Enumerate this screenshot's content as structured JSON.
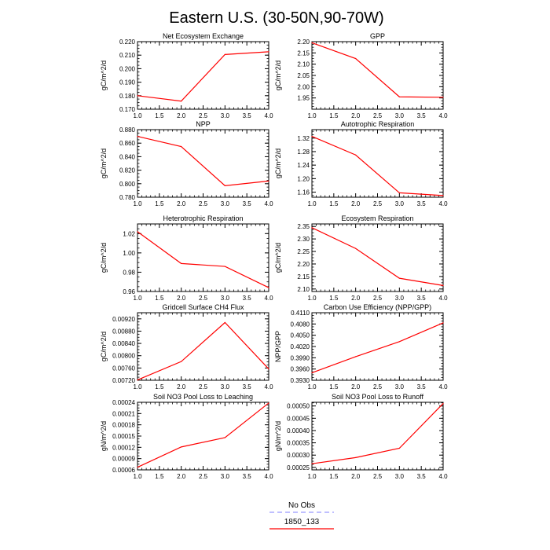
{
  "title": "Eastern U.S. (30-50N,90-70W)",
  "colors": {
    "series": "#ff0000",
    "obs": "#9999ff",
    "axis": "#000000"
  },
  "legend": {
    "items": [
      "No Obs",
      "1850_133"
    ]
  },
  "chart_data": [
    {
      "type": "line",
      "title": "Net Ecosystem Exchange",
      "ylabel": "gC/m^2/d",
      "xlim": [
        1.0,
        4.0
      ],
      "ylim": [
        0.17,
        0.22
      ],
      "x": [
        1,
        2,
        3,
        4
      ],
      "x_ticks": [
        "1.0",
        "1.5",
        "2.0",
        "2.5",
        "3.0",
        "3.5",
        "4.0"
      ],
      "y_ticks": [
        "0.170",
        "0.180",
        "0.190",
        "0.200",
        "0.210",
        "0.220"
      ],
      "series": [
        {
          "name": "1850_133",
          "values": [
            0.18,
            0.176,
            0.2105,
            0.2125
          ]
        }
      ]
    },
    {
      "type": "line",
      "title": "GPP",
      "ylabel": "gC/m^2/d",
      "xlim": [
        1.0,
        4.0
      ],
      "ylim": [
        1.9,
        2.2
      ],
      "x": [
        1,
        2,
        3,
        4
      ],
      "x_ticks": [
        "1.0",
        "1.5",
        "2.0",
        "2.5",
        "3.0",
        "3.5",
        "4.0"
      ],
      "y_ticks": [
        "1.95",
        "2.00",
        "2.05",
        "2.10",
        "2.15",
        "2.20"
      ],
      "series": [
        {
          "name": "1850_133",
          "values": [
            2.195,
            2.125,
            1.955,
            1.953
          ]
        }
      ]
    },
    {
      "type": "line",
      "title": "NPP",
      "ylabel": "gC/m^2/d",
      "xlim": [
        1.0,
        4.0
      ],
      "ylim": [
        0.78,
        0.88
      ],
      "x": [
        1,
        2,
        3,
        4
      ],
      "x_ticks": [
        "1.0",
        "1.5",
        "2.0",
        "2.5",
        "3.0",
        "3.5",
        "4.0"
      ],
      "y_ticks": [
        "0.780",
        "0.800",
        "0.820",
        "0.840",
        "0.860",
        "0.880"
      ],
      "series": [
        {
          "name": "1850_133",
          "values": [
            0.87,
            0.855,
            0.797,
            0.804
          ]
        }
      ]
    },
    {
      "type": "line",
      "title": "Autotrophic Respiration",
      "ylabel": "gC/m^2/d",
      "xlim": [
        1.0,
        4.0
      ],
      "ylim": [
        1.145,
        1.345
      ],
      "x": [
        1,
        2,
        3,
        4
      ],
      "x_ticks": [
        "1.0",
        "1.5",
        "2.0",
        "2.5",
        "3.0",
        "3.5",
        "4.0"
      ],
      "y_ticks": [
        "1.16",
        "1.20",
        "1.24",
        "1.28",
        "1.32"
      ],
      "series": [
        {
          "name": "1850_133",
          "values": [
            1.325,
            1.27,
            1.158,
            1.15
          ]
        }
      ]
    },
    {
      "type": "line",
      "title": "Heterotrophic Respiration",
      "ylabel": "gC/m^2/d",
      "xlim": [
        1.0,
        4.0
      ],
      "ylim": [
        0.96,
        1.03
      ],
      "x": [
        1,
        2,
        3,
        4
      ],
      "x_ticks": [
        "1.0",
        "1.5",
        "2.0",
        "2.5",
        "3.0",
        "3.5",
        "4.0"
      ],
      "y_ticks": [
        "0.96",
        "0.98",
        "1.00",
        "1.02"
      ],
      "series": [
        {
          "name": "1850_133",
          "values": [
            1.022,
            0.989,
            0.986,
            0.964
          ]
        }
      ]
    },
    {
      "type": "line",
      "title": "Ecosystem Respiration",
      "ylabel": "gC/m^2/d",
      "xlim": [
        1.0,
        4.0
      ],
      "ylim": [
        2.09,
        2.36
      ],
      "x": [
        1,
        2,
        3,
        4
      ],
      "x_ticks": [
        "1.0",
        "1.5",
        "2.0",
        "2.5",
        "3.0",
        "3.5",
        "4.0"
      ],
      "y_ticks": [
        "2.10",
        "2.15",
        "2.20",
        "2.25",
        "2.30",
        "2.35"
      ],
      "series": [
        {
          "name": "1850_133",
          "values": [
            2.345,
            2.262,
            2.143,
            2.114
          ]
        }
      ]
    },
    {
      "type": "line",
      "title": "Gridcell Surface CH4 Flux",
      "ylabel": "gC/m^2/d",
      "xlim": [
        1.0,
        4.0
      ],
      "ylim": [
        0.0072,
        0.0094
      ],
      "x": [
        1,
        2,
        3,
        4
      ],
      "x_ticks": [
        "1.0",
        "1.5",
        "2.0",
        "2.5",
        "3.0",
        "3.5",
        "4.0"
      ],
      "y_ticks": [
        "0.00720",
        "0.00760",
        "0.00800",
        "0.00840",
        "0.00880",
        "0.00920"
      ],
      "series": [
        {
          "name": "1850_133",
          "values": [
            0.00721,
            0.00781,
            0.00908,
            0.00757
          ]
        }
      ]
    },
    {
      "type": "line",
      "title": "Carbon Use Efficiency (NPP/GPP)",
      "ylabel": "NPP/GPP",
      "xlim": [
        1.0,
        4.0
      ],
      "ylim": [
        0.393,
        0.411
      ],
      "x": [
        1,
        2,
        3,
        4
      ],
      "x_ticks": [
        "1.0",
        "1.5",
        "2.0",
        "2.5",
        "3.0",
        "3.5",
        "4.0"
      ],
      "y_ticks": [
        "0.3930",
        "0.3960",
        "0.3990",
        "0.4020",
        "0.4050",
        "0.4080",
        "0.4110"
      ],
      "series": [
        {
          "name": "1850_133",
          "values": [
            0.395,
            0.3993,
            0.4033,
            0.4083
          ]
        }
      ]
    },
    {
      "type": "line",
      "title": "Soil NO3 Pool Loss to Leaching",
      "ylabel": "gN/m^2/d",
      "xlim": [
        1.0,
        4.0
      ],
      "ylim": [
        6e-05,
        0.00024
      ],
      "x": [
        1,
        2,
        3,
        4
      ],
      "x_ticks": [
        "1.0",
        "1.5",
        "2.0",
        "2.5",
        "3.0",
        "3.5",
        "4.0"
      ],
      "y_ticks": [
        "0.00006",
        "0.00009",
        "0.00012",
        "0.00015",
        "0.00018",
        "0.00021",
        "0.00024"
      ],
      "series": [
        {
          "name": "1850_133",
          "values": [
            6.7e-05,
            0.000121,
            0.000146,
            0.000238
          ]
        }
      ]
    },
    {
      "type": "line",
      "title": "Soil NO3 Pool Loss to Runoff",
      "ylabel": "gN/m^2/d",
      "xlim": [
        1.0,
        4.0
      ],
      "ylim": [
        0.00024,
        0.000515
      ],
      "x": [
        1,
        2,
        3,
        4
      ],
      "x_ticks": [
        "1.0",
        "1.5",
        "2.0",
        "2.5",
        "3.0",
        "3.5",
        "4.0"
      ],
      "y_ticks": [
        "0.00025",
        "0.00030",
        "0.00035",
        "0.00040",
        "0.00045",
        "0.00050"
      ],
      "series": [
        {
          "name": "1850_133",
          "values": [
            0.000265,
            0.00029,
            0.000328,
            0.00051
          ]
        }
      ]
    }
  ]
}
